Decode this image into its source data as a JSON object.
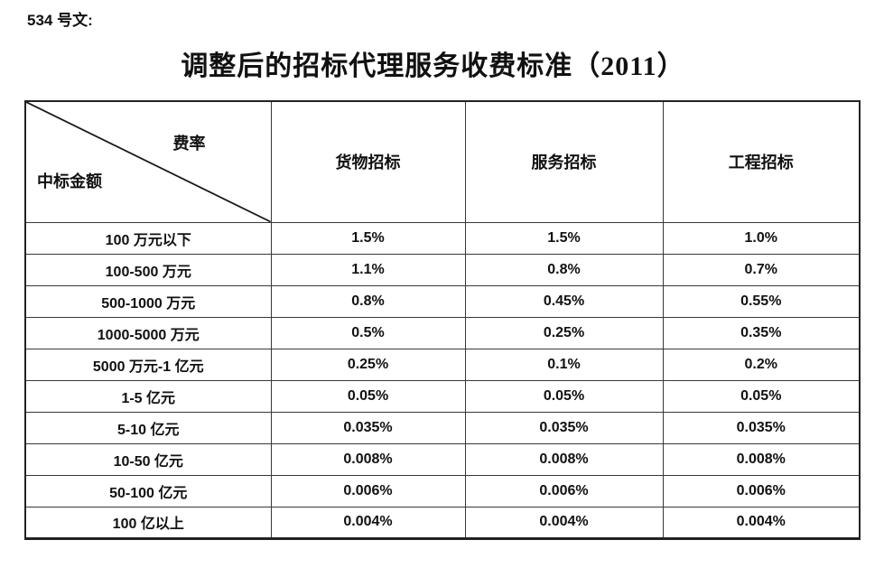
{
  "doc": {
    "doc_number": "534 号文:",
    "title": "调整后的招标代理服务收费标准（2011）"
  },
  "table": {
    "corner_top_right": "费率",
    "corner_bottom_left": "中标金额",
    "columns": [
      "货物招标",
      "服务招标",
      "工程招标"
    ],
    "rows": [
      {
        "label": "100 万元以下",
        "values": [
          "1.5%",
          "1.5%",
          "1.0%"
        ]
      },
      {
        "label": "100-500 万元",
        "values": [
          "1.1%",
          "0.8%",
          "0.7%"
        ]
      },
      {
        "label": "500-1000 万元",
        "values": [
          "0.8%",
          "0.45%",
          "0.55%"
        ]
      },
      {
        "label": "1000-5000 万元",
        "values": [
          "0.5%",
          "0.25%",
          "0.35%"
        ]
      },
      {
        "label": "5000 万元-1 亿元",
        "values": [
          "0.25%",
          "0.1%",
          "0.2%"
        ]
      },
      {
        "label": "1-5 亿元",
        "values": [
          "0.05%",
          "0.05%",
          "0.05%"
        ]
      },
      {
        "label": "5-10 亿元",
        "values": [
          "0.035%",
          "0.035%",
          "0.035%"
        ]
      },
      {
        "label": "10-50 亿元",
        "values": [
          "0.008%",
          "0.008%",
          "0.008%"
        ]
      },
      {
        "label": "50-100 亿元",
        "values": [
          "0.006%",
          "0.006%",
          "0.006%"
        ]
      },
      {
        "label": "100 亿以上",
        "values": [
          "0.004%",
          "0.004%",
          "0.004%"
        ]
      }
    ],
    "colors": {
      "text": "#111111",
      "border_inner": "#383838",
      "border_outer": "#222222",
      "background": "#ffffff"
    }
  }
}
